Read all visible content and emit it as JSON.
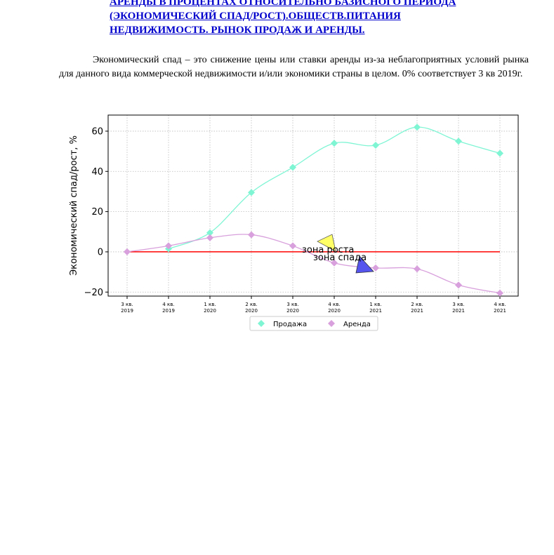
{
  "document": {
    "title_lines": [
      "АРЕНДЫ В ПРОЦЕНТАХ ОТНОСИТЕЛЬНО БАЗИСНОГО ПЕРИОДА",
      "(ЭКОНОМИЧЕСКИЙ СПАД/РОСТ).ОБЩЕСТВ.ПИТАНИЯ",
      "НЕДВИЖИМОСТЬ. РЫНОК ПРОДАЖ И АРЕНДЫ."
    ],
    "paragraph": "Экономический спад – это снижение цены или ставки аренды из-за неблагоприятных условий рынка для данного вида коммерческой недвижимости и/или экономики страны в целом. 0% соответствует 3 кв 2019г."
  },
  "colors": {
    "title": "#0000cc",
    "sales": "#7ff5d4",
    "rent": "#d8a0dc",
    "zero_line": "#ff0000",
    "growth_marker": "#ffff66",
    "decline_marker": "#5555ee"
  },
  "chart_data": {
    "type": "line",
    "categories": [
      "3 кв.\n2019",
      "4 кв.\n2019",
      "1 кв.\n2020",
      "2 кв.\n2020",
      "3 кв.\n2020",
      "4 кв.\n2020",
      "1 кв.\n2021",
      "2 кв.\n2021",
      "3 кв.\n2021",
      "4 кв.\n2021"
    ],
    "series": [
      {
        "name": "Продажа",
        "values": [
          null,
          1.5,
          9.5,
          29.5,
          42,
          54,
          53,
          62,
          55,
          49
        ]
      },
      {
        "name": "Аренда",
        "values": [
          0,
          3,
          7,
          8.5,
          3,
          -5.5,
          -8,
          -8.5,
          -16.5,
          -20.5
        ]
      }
    ],
    "ylabel": "Экономический спад/рост, %",
    "xlabel": "",
    "ylim": [
      -22,
      68
    ],
    "yticks": [
      -20,
      0,
      20,
      40,
      60
    ],
    "ytick_labels": [
      "−20",
      "0",
      "20",
      "40",
      "60"
    ],
    "zero_line": {
      "from": 0,
      "to": 9,
      "value": 0
    },
    "annotations": [
      {
        "text": "зона роста",
        "x": 5,
        "y": 1,
        "marker": "growth"
      },
      {
        "text": "зона спада",
        "x": 5,
        "y": -3.5,
        "marker": "decline"
      }
    ],
    "grid": true,
    "legend": "bottom-center"
  }
}
